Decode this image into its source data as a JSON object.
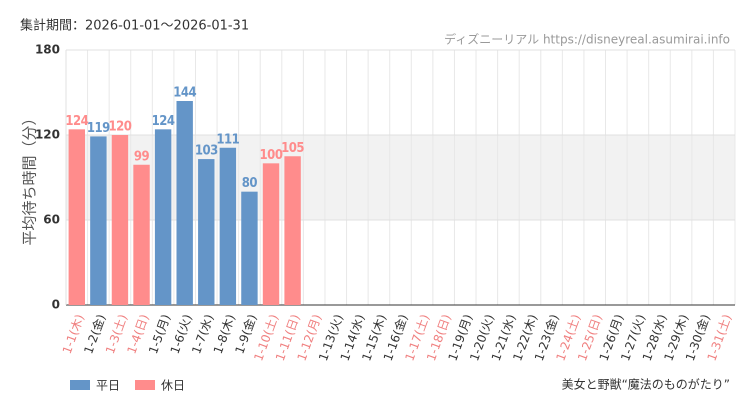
{
  "chart_data": {
    "type": "bar",
    "period_label": "集計期間：2026-01-01〜2026-01-31",
    "source": "ディズニーリアル https://disneyreal.asumirai.info",
    "attraction": "美女と野獣“魔法のものがたり”",
    "y_label": "平均待ち時間（分）",
    "categories": [
      "1-1(木)",
      "1-2(金)",
      "1-3(土)",
      "1-4(日)",
      "1-5(月)",
      "1-6(火)",
      "1-7(水)",
      "1-8(木)",
      "1-9(金)",
      "1-10(土)",
      "1-11(日)",
      "1-12(月)",
      "1-13(火)",
      "1-14(水)",
      "1-15(木)",
      "1-16(金)",
      "1-17(土)",
      "1-18(日)",
      "1-19(月)",
      "1-20(火)",
      "1-21(水)",
      "1-22(木)",
      "1-23(金)",
      "1-24(土)",
      "1-25(日)",
      "1-26(月)",
      "1-27(火)",
      "1-28(水)",
      "1-29(木)",
      "1-30(金)",
      "1-31(土)"
    ],
    "category_label_colors": [
      "#f08080",
      "#333333",
      "#f08080",
      "#f08080",
      "#333333",
      "#333333",
      "#333333",
      "#333333",
      "#333333",
      "#f08080",
      "#f08080",
      "#f08080",
      "#333333",
      "#333333",
      "#333333",
      "#333333",
      "#f08080",
      "#f08080",
      "#333333",
      "#333333",
      "#333333",
      "#333333",
      "#333333",
      "#f08080",
      "#f08080",
      "#333333",
      "#333333",
      "#333333",
      "#333333",
      "#333333",
      "#f08080"
    ],
    "series": [
      {
        "name": "平日",
        "color": "#6495c8",
        "values": [
          null,
          119,
          null,
          null,
          124,
          144,
          103,
          111,
          80,
          null,
          null,
          null,
          null,
          null,
          null,
          null,
          null,
          null,
          null,
          null,
          null,
          null,
          null,
          null,
          null,
          null,
          null,
          null,
          null,
          null,
          null
        ]
      },
      {
        "name": "休日",
        "color": "#ff8c8c",
        "values": [
          124,
          null,
          120,
          99,
          null,
          null,
          null,
          null,
          null,
          100,
          105,
          null,
          null,
          null,
          null,
          null,
          null,
          null,
          null,
          null,
          null,
          null,
          null,
          null,
          null,
          null,
          null,
          null,
          null,
          null,
          null
        ]
      }
    ],
    "band": [
      60,
      120
    ],
    "ylim": [
      0,
      180
    ],
    "yticks": [
      0,
      60,
      120,
      180
    ],
    "grid": true
  }
}
